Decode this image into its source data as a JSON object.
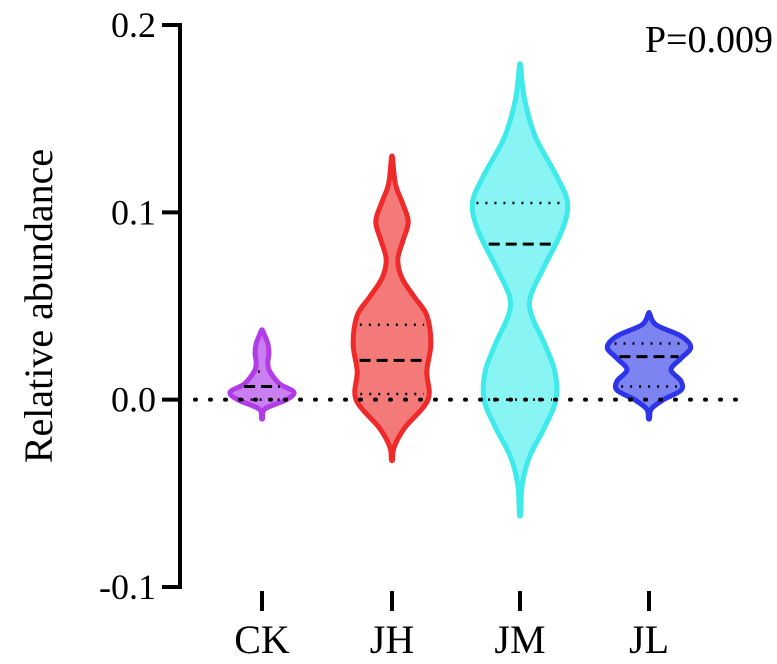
{
  "chart_data": {
    "type": "violin",
    "title": "",
    "xlabel": "",
    "ylabel": "Relative abundance",
    "annotation": "P=0.009",
    "ylim": [
      -0.1,
      0.2
    ],
    "yticks": [
      {
        "value": 0.2,
        "label": "0.2"
      },
      {
        "value": 0.1,
        "label": "0.1"
      },
      {
        "value": 0.0,
        "label": "0.0"
      },
      {
        "value": -0.1,
        "label": "-0.1"
      }
    ],
    "reference_line": {
      "y": 0.0,
      "style": "dotted"
    },
    "categories": [
      "CK",
      "JH",
      "JM",
      "JL"
    ],
    "groups": [
      {
        "name": "CK",
        "color": "#B23DE6",
        "fill": "#C97FF0",
        "min": -0.01,
        "max": 0.037,
        "q1": 0.0,
        "median": 0.007,
        "q3": 0.015,
        "density": [
          [
            -0.01,
            0.01
          ],
          [
            -0.005,
            0.05
          ],
          [
            0.0,
            0.42
          ],
          [
            0.004,
            0.55
          ],
          [
            0.008,
            0.32
          ],
          [
            0.012,
            0.2
          ],
          [
            0.016,
            0.12
          ],
          [
            0.02,
            0.1
          ],
          [
            0.025,
            0.12
          ],
          [
            0.03,
            0.1
          ],
          [
            0.034,
            0.05
          ],
          [
            0.037,
            0.01
          ]
        ]
      },
      {
        "name": "JH",
        "color": "#EE2A2A",
        "fill": "#F47A7A",
        "min": -0.032,
        "max": 0.129,
        "q1": 0.003,
        "median": 0.021,
        "q3": 0.04,
        "density": [
          [
            -0.032,
            0.01
          ],
          [
            -0.025,
            0.04
          ],
          [
            -0.015,
            0.22
          ],
          [
            0.0,
            0.62
          ],
          [
            0.015,
            0.6
          ],
          [
            0.03,
            0.67
          ],
          [
            0.045,
            0.6
          ],
          [
            0.055,
            0.38
          ],
          [
            0.065,
            0.17
          ],
          [
            0.075,
            0.1
          ],
          [
            0.085,
            0.19
          ],
          [
            0.095,
            0.28
          ],
          [
            0.105,
            0.18
          ],
          [
            0.115,
            0.06
          ],
          [
            0.129,
            0.01
          ]
        ]
      },
      {
        "name": "JM",
        "color": "#3FEAEA",
        "fill": "#88F4F4",
        "min": -0.061,
        "max": 0.178,
        "q1": 0.0,
        "median": 0.083,
        "q3": 0.105,
        "density": [
          [
            -0.061,
            0.01
          ],
          [
            -0.045,
            0.04
          ],
          [
            -0.03,
            0.17
          ],
          [
            -0.015,
            0.42
          ],
          [
            0.0,
            0.62
          ],
          [
            0.015,
            0.6
          ],
          [
            0.03,
            0.42
          ],
          [
            0.045,
            0.2
          ],
          [
            0.055,
            0.18
          ],
          [
            0.07,
            0.4
          ],
          [
            0.09,
            0.72
          ],
          [
            0.105,
            0.82
          ],
          [
            0.12,
            0.62
          ],
          [
            0.14,
            0.27
          ],
          [
            0.16,
            0.08
          ],
          [
            0.178,
            0.01
          ]
        ]
      },
      {
        "name": "JL",
        "color": "#2E35E8",
        "fill": "#7E83F2",
        "min": -0.01,
        "max": 0.046,
        "q1": 0.007,
        "median": 0.023,
        "q3": 0.03,
        "density": [
          [
            -0.01,
            0.01
          ],
          [
            -0.005,
            0.04
          ],
          [
            0.0,
            0.25
          ],
          [
            0.005,
            0.55
          ],
          [
            0.01,
            0.55
          ],
          [
            0.016,
            0.38
          ],
          [
            0.022,
            0.55
          ],
          [
            0.028,
            0.72
          ],
          [
            0.034,
            0.55
          ],
          [
            0.04,
            0.12
          ],
          [
            0.046,
            0.01
          ]
        ]
      }
    ]
  }
}
